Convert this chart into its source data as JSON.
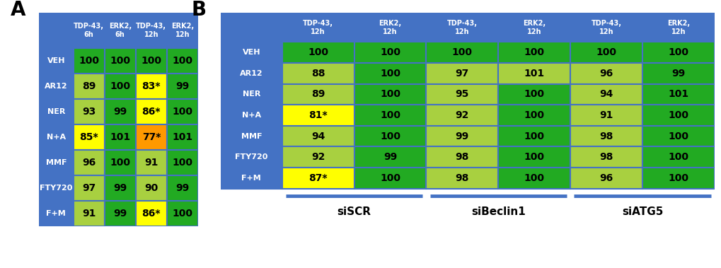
{
  "panel_A": {
    "col_headers": [
      "TDP-43,\n6h",
      "ERK2,\n6h",
      "TDP-43,\n12h",
      "ERK2,\n12h"
    ],
    "row_headers": [
      "VEH",
      "AR12",
      "NER",
      "N+A",
      "MMF",
      "FTY720",
      "F+M"
    ],
    "values": [
      [
        "100",
        "100",
        "100",
        "100"
      ],
      [
        "89",
        "100",
        "83*",
        "99"
      ],
      [
        "93",
        "99",
        "86*",
        "100"
      ],
      [
        "85*",
        "101",
        "77*",
        "101"
      ],
      [
        "96",
        "100",
        "91",
        "100"
      ],
      [
        "97",
        "99",
        "90",
        "99"
      ],
      [
        "91",
        "99",
        "86*",
        "100"
      ]
    ],
    "colors": [
      [
        "#22aa22",
        "#22aa22",
        "#22aa22",
        "#22aa22"
      ],
      [
        "#a8d040",
        "#22aa22",
        "#ffff00",
        "#22aa22"
      ],
      [
        "#a8d040",
        "#22aa22",
        "#ffff00",
        "#22aa22"
      ],
      [
        "#ffff00",
        "#22aa22",
        "#ff9900",
        "#22aa22"
      ],
      [
        "#a8d040",
        "#22aa22",
        "#a8d040",
        "#22aa22"
      ],
      [
        "#a8d040",
        "#22aa22",
        "#a8d040",
        "#22aa22"
      ],
      [
        "#a8d040",
        "#22aa22",
        "#ffff00",
        "#22aa22"
      ]
    ]
  },
  "panel_B": {
    "col_headers": [
      "TDP-43,\n12h",
      "ERK2,\n12h",
      "TDP-43,\n12h",
      "ERK2,\n12h",
      "TDP-43,\n12h",
      "ERK2,\n12h"
    ],
    "row_headers": [
      "VEH",
      "AR12",
      "NER",
      "N+A",
      "MMF",
      "FTY720",
      "F+M"
    ],
    "values": [
      [
        "100",
        "100",
        "100",
        "100",
        "100",
        "100"
      ],
      [
        "88",
        "100",
        "97",
        "101",
        "96",
        "99"
      ],
      [
        "89",
        "100",
        "95",
        "100",
        "94",
        "101"
      ],
      [
        "81*",
        "100",
        "92",
        "100",
        "91",
        "100"
      ],
      [
        "94",
        "100",
        "99",
        "100",
        "98",
        "100"
      ],
      [
        "92",
        "99",
        "98",
        "100",
        "98",
        "100"
      ],
      [
        "87*",
        "100",
        "98",
        "100",
        "96",
        "100"
      ]
    ],
    "colors": [
      [
        "#22aa22",
        "#22aa22",
        "#22aa22",
        "#22aa22",
        "#22aa22",
        "#22aa22"
      ],
      [
        "#a8d040",
        "#22aa22",
        "#a8d040",
        "#a8d040",
        "#a8d040",
        "#22aa22"
      ],
      [
        "#a8d040",
        "#22aa22",
        "#a8d040",
        "#22aa22",
        "#a8d040",
        "#22aa22"
      ],
      [
        "#ffff00",
        "#22aa22",
        "#a8d040",
        "#22aa22",
        "#a8d040",
        "#22aa22"
      ],
      [
        "#a8d040",
        "#22aa22",
        "#a8d040",
        "#22aa22",
        "#a8d040",
        "#22aa22"
      ],
      [
        "#a8d040",
        "#22aa22",
        "#a8d040",
        "#22aa22",
        "#a8d040",
        "#22aa22"
      ],
      [
        "#ffff00",
        "#22aa22",
        "#a8d040",
        "#22aa22",
        "#a8d040",
        "#22aa22"
      ]
    ],
    "group_labels": [
      "siSCR",
      "siBeclin1",
      "siATG5"
    ],
    "group_col_starts": [
      1,
      3,
      5
    ],
    "group_col_ends": [
      3,
      5,
      7
    ]
  },
  "header_color": "#4472c4",
  "header_text_color": "#ffffff",
  "row_header_color": "#4472c4",
  "row_header_text_color": "#ffffff",
  "cell_text_color": "#000000",
  "border_color": "#4472c4",
  "background_color": "#ffffff",
  "label_A": "A",
  "label_B": "B",
  "label_fontsize": 20,
  "header_fontsize": 7.0,
  "cell_fontsize": 10,
  "row_header_fontsize": 8,
  "group_label_fontsize": 11
}
